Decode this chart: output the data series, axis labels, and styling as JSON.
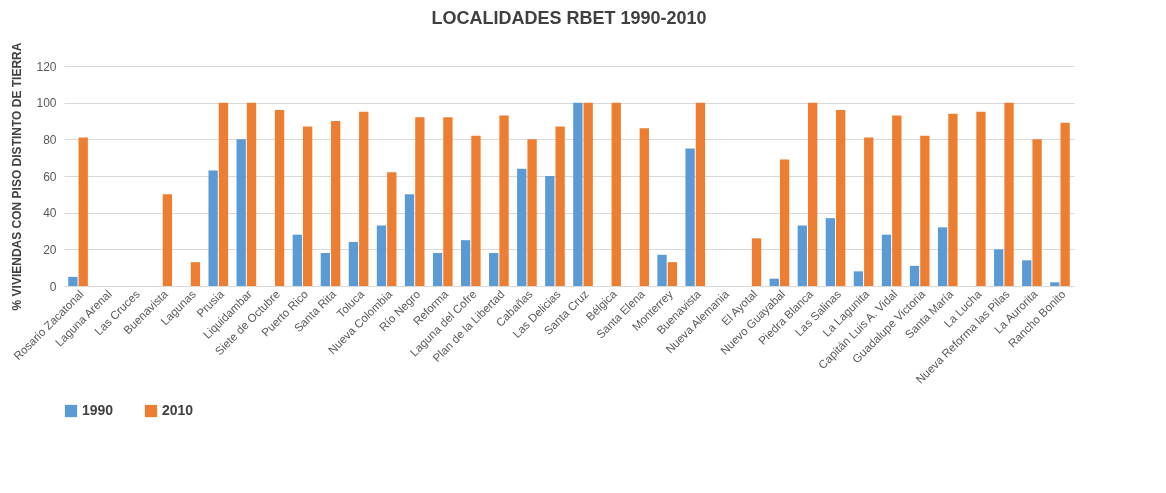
{
  "chart_data": {
    "type": "bar",
    "title": "LOCALIDADES RBET 1990-2010",
    "ylabel": "% VIVIENDAS CON PISO DISTINTO DE TIERRA",
    "categories": [
      "Rosario Zacatonal",
      "Laguna Arenal",
      "Las Cruces",
      "Buenavista",
      "Lagunas",
      "Prusia",
      "Liquidambar",
      "Siete de Octubre",
      "Puerto Rico",
      "Santa Rita",
      "Toluca",
      "Nueva Colombia",
      "Río Negro",
      "Reforma",
      "Laguna del Cofre",
      "Plan de la Libertad",
      "Cabañas",
      "Las Delicias",
      "Santa Cruz",
      "Bélgica",
      "Santa Elena",
      "Monterrey",
      "Buenavista",
      "Nueva Alemania",
      "El Ayotal",
      "Nuevo Guayabal",
      "Piedra Blanca",
      "Las Salinas",
      "La Lagunita",
      "Capitán Luis A. Vidal",
      "Guadalupe Victoria",
      "Santa María",
      "La Lucha",
      "Nueva Reforma las Pilas",
      "La Aurorita",
      "Rancho Bonito"
    ],
    "series": [
      {
        "name": "1990",
        "color": "#5b9bd5",
        "values": [
          5,
          0,
          0,
          0,
          0,
          63,
          80,
          0,
          28,
          18,
          24,
          33,
          50,
          18,
          25,
          18,
          64,
          60,
          100,
          0,
          0,
          17,
          75,
          0,
          0,
          4,
          33,
          37,
          8,
          28,
          11,
          32,
          0,
          20,
          14,
          2
        ]
      },
      {
        "name": "2010",
        "color": "#ed7d31",
        "values": [
          81,
          0,
          0,
          50,
          13,
          100,
          100,
          96,
          87,
          90,
          95,
          62,
          92,
          92,
          82,
          93,
          80,
          87,
          100,
          100,
          86,
          13,
          100,
          0,
          26,
          69,
          100,
          96,
          81,
          93,
          82,
          94,
          95,
          100,
          80,
          89
        ]
      }
    ],
    "ylim": [
      0,
      120
    ],
    "yticks": [
      0,
      20,
      40,
      60,
      80,
      100,
      120
    ],
    "grid": "y",
    "legend": "bottom"
  }
}
